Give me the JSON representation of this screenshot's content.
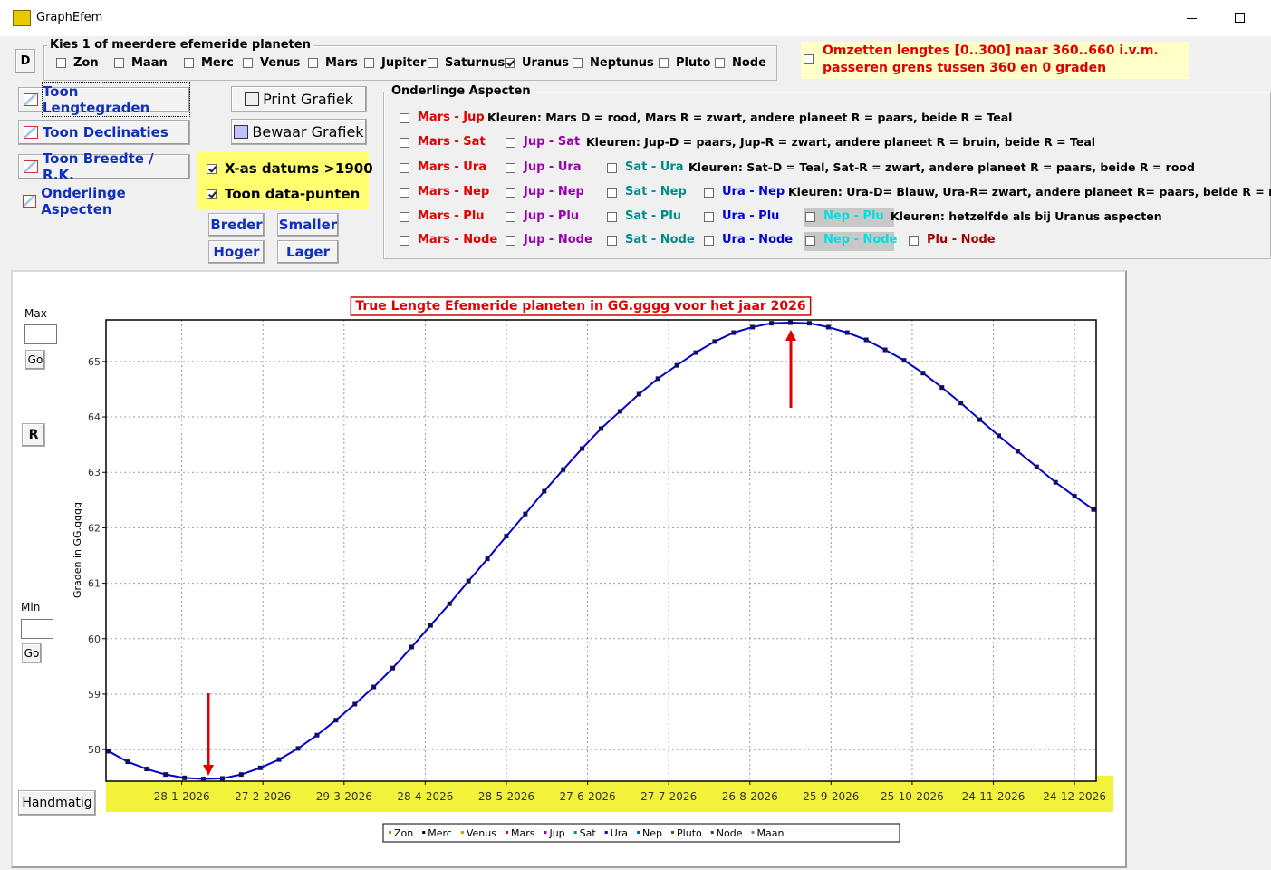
{
  "window": {
    "title": "GraphEfem"
  },
  "planets": {
    "button": "D",
    "legend": "Kies 1 of meerdere efemeride planeten",
    "items": [
      {
        "label": "Zon",
        "checked": false
      },
      {
        "label": "Maan",
        "checked": false
      },
      {
        "label": "Merc",
        "checked": false
      },
      {
        "label": "Venus",
        "checked": false
      },
      {
        "label": "Mars",
        "checked": false
      },
      {
        "label": "Jupiter",
        "checked": false
      },
      {
        "label": "Saturnus",
        "checked": false
      },
      {
        "label": "Uranus",
        "checked": true
      },
      {
        "label": "Neptunus",
        "checked": false
      },
      {
        "label": "Pluto",
        "checked": false
      },
      {
        "label": "Node",
        "checked": false
      }
    ]
  },
  "notice": {
    "checked": false,
    "lines": [
      "Omzetten lengtes [0..300] naar 360..660 i.v.m.",
      "passeren grens tussen 360 en 0 graden"
    ]
  },
  "view_buttons": [
    "Toon Lengtegraden",
    "Toon Declinaties",
    "Toon Breedte / R.K.",
    "Onderlinge Aspecten"
  ],
  "file_buttons": [
    "Print Grafiek",
    "Bewaar Grafiek"
  ],
  "options": [
    {
      "label": "X-as datums >1900",
      "checked": true
    },
    {
      "label": "Toon data-punten",
      "checked": true
    }
  ],
  "size_buttons": [
    "Breder",
    "Smaller",
    "Hoger",
    "Lager"
  ],
  "aspects": {
    "legend": "Onderlinge Aspecten",
    "rows": [
      {
        "cells": [
          {
            "label": "Mars - Jup",
            "color": "#e00000"
          }
        ],
        "note": "Kleuren: Mars D = rood, Mars R = zwart, andere planeet R = paars, beide R = Teal"
      },
      {
        "cells": [
          {
            "label": "Mars - Sat",
            "color": "#e00000"
          },
          {
            "label": "Jup - Sat",
            "color": "#9a00b0"
          }
        ],
        "note": "Kleuren: Jup-D = paars, Jup-R = zwart, andere planeet R = bruin, beide R = Teal"
      },
      {
        "cells": [
          {
            "label": "Mars - Ura",
            "color": "#e00000"
          },
          {
            "label": "Jup - Ura",
            "color": "#9a00b0"
          },
          {
            "label": "Sat - Ura",
            "color": "#008b8b"
          }
        ],
        "note": "Kleuren: Sat-D = Teal, Sat-R = zwart, andere planeet R = paars, beide R = rood"
      },
      {
        "cells": [
          {
            "label": "Mars - Nep",
            "color": "#e00000"
          },
          {
            "label": "Jup - Nep",
            "color": "#9a00b0"
          },
          {
            "label": "Sat - Nep",
            "color": "#008b8b"
          },
          {
            "label": "Ura - Nep",
            "color": "#0000e0"
          }
        ],
        "note": "Kleuren: Ura-D= Blauw, Ura-R= zwart, andere planeet R= paars, beide R = rood"
      },
      {
        "cells": [
          {
            "label": "Mars - Plu",
            "color": "#e00000"
          },
          {
            "label": "Jup - Plu",
            "color": "#9a00b0"
          },
          {
            "label": "Sat - Plu",
            "color": "#008b8b"
          },
          {
            "label": "Ura - Plu",
            "color": "#0000e0"
          },
          {
            "label": "Nep - Plu",
            "color": "#00e0e0"
          }
        ],
        "note": "Kleuren: hetzelfde als bij Uranus aspecten"
      },
      {
        "cells": [
          {
            "label": "Mars - Node",
            "color": "#e00000"
          },
          {
            "label": "Jup - Node",
            "color": "#9a00b0"
          },
          {
            "label": "Sat - Node",
            "color": "#008b8b"
          },
          {
            "label": "Ura - Node",
            "color": "#0000e0"
          },
          {
            "label": "Nep - Node",
            "color": "#00e0e0"
          },
          {
            "label": "Plu - Node",
            "color": "#a00000"
          }
        ]
      }
    ]
  },
  "side": {
    "max": "Max",
    "min": "Min",
    "go": "Go",
    "reset": "R",
    "manual": "Handmatig"
  },
  "chart_data": {
    "type": "line",
    "title": "True Lengte Efemeride planeten in GG.gggg voor het jaar 2026",
    "y_label": "Graden in GG.gggg",
    "x": [
      "1-1-2026",
      "8-1-2026",
      "15-1-2026",
      "22-1-2026",
      "29-1-2026",
      "5-2-2026",
      "12-2-2026",
      "19-2-2026",
      "26-2-2026",
      "5-3-2026",
      "12-3-2026",
      "19-3-2026",
      "26-3-2026",
      "2-4-2026",
      "9-4-2026",
      "16-4-2026",
      "23-4-2026",
      "30-4-2026",
      "7-5-2026",
      "14-5-2026",
      "21-5-2026",
      "28-5-2026",
      "4-6-2026",
      "11-6-2026",
      "18-6-2026",
      "25-6-2026",
      "2-7-2026",
      "9-7-2026",
      "16-7-2026",
      "23-7-2026",
      "30-7-2026",
      "6-8-2026",
      "13-8-2026",
      "20-8-2026",
      "27-8-2026",
      "3-9-2026",
      "10-9-2026",
      "17-9-2026",
      "24-9-2026",
      "1-10-2026",
      "8-10-2026",
      "15-10-2026",
      "22-10-2026",
      "29-10-2026",
      "5-11-2026",
      "12-11-2026",
      "19-11-2026",
      "26-11-2026",
      "3-12-2026",
      "10-12-2026",
      "17-12-2026",
      "24-12-2026",
      "31-12-2026"
    ],
    "series": [
      {
        "color": "#0000cc",
        "marker_color": "#101060",
        "values": [
          57.97,
          57.78,
          57.65,
          57.55,
          57.49,
          57.47,
          57.48,
          57.55,
          57.67,
          57.82,
          58.02,
          58.26,
          58.53,
          58.82,
          59.13,
          59.47,
          59.85,
          60.24,
          60.63,
          61.04,
          61.44,
          61.85,
          62.25,
          62.66,
          63.05,
          63.43,
          63.79,
          64.1,
          64.41,
          64.69,
          64.93,
          65.16,
          65.36,
          65.52,
          65.62,
          65.69,
          65.7,
          65.69,
          65.62,
          65.52,
          65.39,
          65.21,
          65.02,
          64.79,
          64.53,
          64.25,
          63.95,
          63.66,
          63.38,
          63.1,
          62.82,
          62.57,
          62.33
        ]
      }
    ],
    "xlim": [
      "31-12-2025",
      "1-1-2027"
    ],
    "xticks": [
      "28-1-2026",
      "27-2-2026",
      "29-3-2026",
      "28-4-2026",
      "28-5-2026",
      "27-6-2026",
      "27-7-2026",
      "26-8-2026",
      "25-9-2026",
      "25-10-2026",
      "24-11-2026",
      "24-12-2026"
    ],
    "ylim": [
      57.43,
      65.75
    ],
    "yticks": [
      58,
      59,
      60,
      61,
      62,
      63,
      64,
      65
    ],
    "grid": true,
    "legend": [
      {
        "name": "Zon",
        "color": "#d08000"
      },
      {
        "name": "Merc",
        "color": "#000000"
      },
      {
        "name": "Venus",
        "color": "#c0a000"
      },
      {
        "name": "Mars",
        "color": "#e00000"
      },
      {
        "name": "Jup",
        "color": "#9a00b0"
      },
      {
        "name": "Sat",
        "color": "#008b8b"
      },
      {
        "name": "Ura",
        "color": "#0000cc"
      },
      {
        "name": "Nep",
        "color": "#0060c0"
      },
      {
        "name": "Pluto",
        "color": "#804000"
      },
      {
        "name": "Node",
        "color": "#404040"
      },
      {
        "name": "Maan",
        "color": "#808080"
      }
    ]
  }
}
